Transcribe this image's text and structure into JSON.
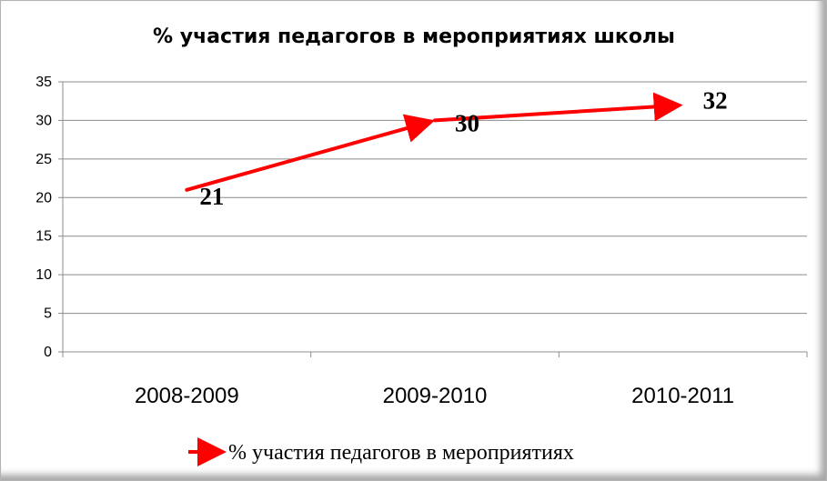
{
  "chart_data": {
    "type": "line",
    "title": "% участия педагогов в мероприятиях школы",
    "categories": [
      "2008-2009",
      "2009-2010",
      "2010-2011"
    ],
    "series": [
      {
        "name": "% участия педагогов в мероприятиях",
        "values": [
          21,
          30,
          32
        ],
        "color": "#ff0000",
        "marker": "arrow"
      }
    ],
    "data_labels": [
      "21",
      "30",
      "32"
    ],
    "ylim": [
      0,
      35
    ],
    "yticks": [
      0,
      5,
      10,
      15,
      20,
      25,
      30,
      35
    ],
    "ytick_labels": [
      "0",
      "5",
      "10",
      "15",
      "20",
      "25",
      "30",
      "35"
    ],
    "xlabel": "",
    "ylabel": "",
    "grid": true,
    "legend_position": "bottom"
  }
}
